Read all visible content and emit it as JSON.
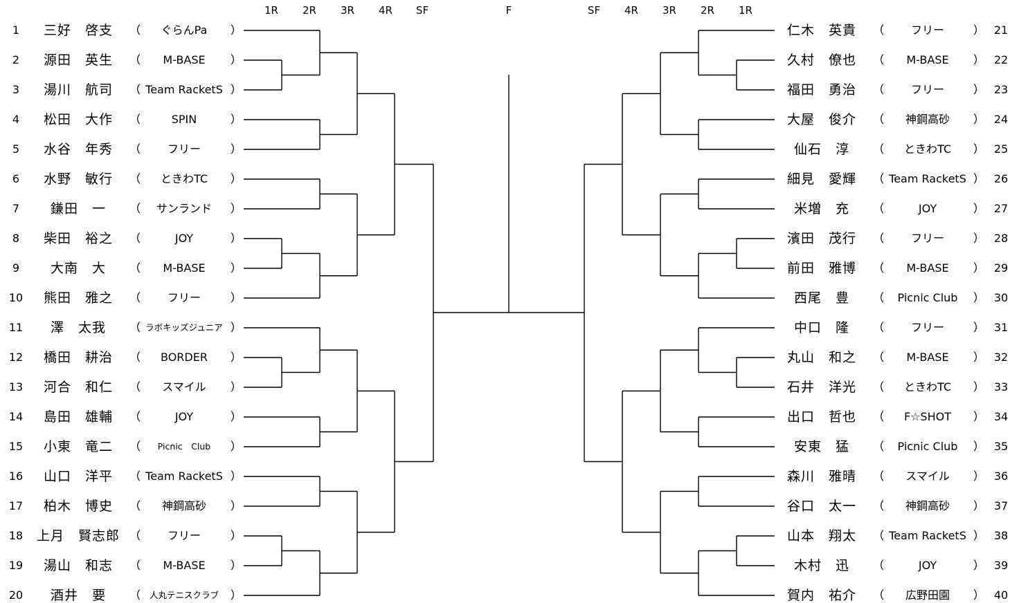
{
  "rounds": {
    "left": [
      "1R",
      "2R",
      "3R",
      "4R",
      "SF"
    ],
    "final": "F",
    "right": [
      "SF",
      "4R",
      "3R",
      "2R",
      "1R"
    ]
  },
  "left_entries": [
    {
      "seed": "1",
      "name": "三好　啓支",
      "club": "ぐらんPa"
    },
    {
      "seed": "2",
      "name": "源田　英生",
      "club": "M-BASE"
    },
    {
      "seed": "3",
      "name": "湯川　航司",
      "club": "Team RacketS"
    },
    {
      "seed": "4",
      "name": "松田　大作",
      "club": "SPIN"
    },
    {
      "seed": "5",
      "name": "水谷　年秀",
      "club": "フリー"
    },
    {
      "seed": "6",
      "name": "水野　敏行",
      "club": "ときわTC"
    },
    {
      "seed": "7",
      "name": "鎌田　一",
      "club": "サンランド"
    },
    {
      "seed": "8",
      "name": "柴田　裕之",
      "club": "JOY"
    },
    {
      "seed": "9",
      "name": "大南　大",
      "club": "M-BASE"
    },
    {
      "seed": "10",
      "name": "熊田　雅之",
      "club": "フリー"
    },
    {
      "seed": "11",
      "name": "澤　太我",
      "club": "ラボキッズジュニア"
    },
    {
      "seed": "12",
      "name": "橋田　耕治",
      "club": "BORDER"
    },
    {
      "seed": "13",
      "name": "河合　和仁",
      "club": "スマイル"
    },
    {
      "seed": "14",
      "name": "島田　雄輔",
      "club": "JOY"
    },
    {
      "seed": "15",
      "name": "小東　竜二",
      "club": "Picnic　Club"
    },
    {
      "seed": "16",
      "name": "山口　洋平",
      "club": "Team RacketS"
    },
    {
      "seed": "17",
      "name": "柏木　博史",
      "club": "神鋼高砂"
    },
    {
      "seed": "18",
      "name": "上月　賢志郎",
      "club": "フリー"
    },
    {
      "seed": "19",
      "name": "湯山　和志",
      "club": "M-BASE"
    },
    {
      "seed": "20",
      "name": "酒井　要",
      "club": "人丸テニスクラブ"
    }
  ],
  "right_entries": [
    {
      "seed": "21",
      "name": "仁木　英貴",
      "club": "フリー"
    },
    {
      "seed": "22",
      "name": "久村　僚也",
      "club": "M-BASE"
    },
    {
      "seed": "23",
      "name": "福田　勇治",
      "club": "フリー"
    },
    {
      "seed": "24",
      "name": "大屋　俊介",
      "club": "神鋼高砂"
    },
    {
      "seed": "25",
      "name": "仙石　淳",
      "club": "ときわTC"
    },
    {
      "seed": "26",
      "name": "細見　愛輝",
      "club": "Team RacketS"
    },
    {
      "seed": "27",
      "name": "米増　充",
      "club": "JOY"
    },
    {
      "seed": "28",
      "name": "濱田　茂行",
      "club": "フリー"
    },
    {
      "seed": "29",
      "name": "前田　雅博",
      "club": "M-BASE"
    },
    {
      "seed": "30",
      "name": "西尾　豊",
      "club": "Picnic Club"
    },
    {
      "seed": "31",
      "name": "中口　隆",
      "club": "フリー"
    },
    {
      "seed": "32",
      "name": "丸山　和之",
      "club": "M-BASE"
    },
    {
      "seed": "33",
      "name": "石井　洋光",
      "club": "ときわTC"
    },
    {
      "seed": "34",
      "name": "出口　哲也",
      "club": "F☆SHOT"
    },
    {
      "seed": "35",
      "name": "安東　猛",
      "club": "Picnic Club"
    },
    {
      "seed": "36",
      "name": "森川　雅晴",
      "club": "スマイル"
    },
    {
      "seed": "37",
      "name": "谷口　太一",
      "club": "神鋼高砂"
    },
    {
      "seed": "38",
      "name": "山本　翔太",
      "club": "Team RacketS"
    },
    {
      "seed": "39",
      "name": "木村　迅",
      "club": "JOY"
    },
    {
      "seed": "40",
      "name": "賀内　祐介",
      "club": "広野田園"
    }
  ],
  "paren_open": "（",
  "paren_close": "）"
}
